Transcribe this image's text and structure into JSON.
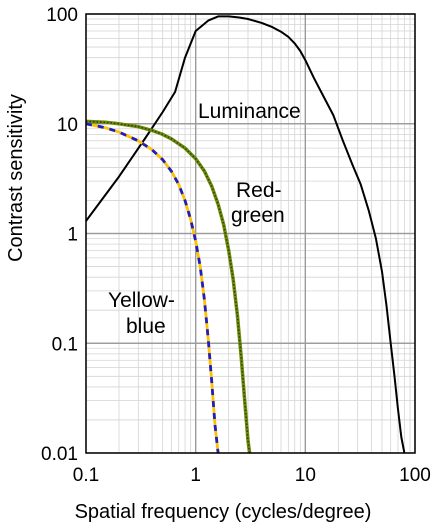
{
  "chart_data": {
    "type": "line",
    "title": "",
    "xlabel": "Spatial frequency (cycles/degree)",
    "ylabel": "Contrast sensitivity",
    "xscale": "log",
    "yscale": "log",
    "xlim": [
      0.1,
      100
    ],
    "ylim": [
      0.01,
      100
    ],
    "grid": true,
    "x_ticks": [
      "0.1",
      "1",
      "10",
      "100"
    ],
    "y_ticks": [
      "100",
      "10",
      "1",
      "0.1",
      "0.01"
    ],
    "annotations": [
      {
        "text": "Luminance",
        "series": "luminance"
      },
      {
        "text": "Red-",
        "series": "red-green"
      },
      {
        "text": "green",
        "series": "red-green"
      },
      {
        "text": "Yellow-",
        "series": "yellow-blue"
      },
      {
        "text": "blue",
        "series": "yellow-blue"
      }
    ],
    "series": [
      {
        "id": "luminance",
        "style": "solid",
        "colors": [
          "#000000"
        ],
        "x": [
          0.1,
          0.2,
          0.35,
          0.5,
          0.65,
          0.8,
          1.0,
          1.3,
          1.6,
          2.0,
          2.5,
          3.0,
          4.0,
          5.0,
          6.0,
          7.0,
          8.0,
          9.0,
          10.0,
          12.0,
          15.0,
          18.0,
          22.0,
          27.0,
          32.0,
          38.0,
          44.0,
          50.0,
          55.0,
          60.0,
          65.0,
          70.0,
          75.0,
          80.0
        ],
        "y": [
          1.3,
          3.3,
          7.5,
          12.8,
          19.5,
          40.0,
          70.0,
          87.0,
          95.0,
          95.0,
          93.0,
          90.0,
          83.0,
          76.0,
          69.0,
          62.0,
          54.0,
          46.0,
          38.0,
          26.0,
          17.0,
          12.0,
          7.0,
          4.2,
          2.8,
          1.6,
          0.9,
          0.45,
          0.22,
          0.1,
          0.05,
          0.025,
          0.014,
          0.01
        ]
      },
      {
        "id": "red-green",
        "style": "dotted-double",
        "colors": [
          "#6b8e00",
          "#333333"
        ],
        "x": [
          0.1,
          0.15,
          0.2,
          0.3,
          0.4,
          0.5,
          0.6,
          0.8,
          1.0,
          1.2,
          1.4,
          1.6,
          1.8,
          2.0,
          2.2,
          2.4,
          2.6,
          2.8,
          3.0,
          3.1
        ],
        "y": [
          10.5,
          10.3,
          10.0,
          9.4,
          8.7,
          8.0,
          7.3,
          6.0,
          4.8,
          3.7,
          2.7,
          1.85,
          1.2,
          0.7,
          0.38,
          0.18,
          0.075,
          0.03,
          0.013,
          0.01
        ]
      },
      {
        "id": "yellow-blue",
        "style": "dashed-double",
        "colors": [
          "#ffc000",
          "#1f1fc0"
        ],
        "x": [
          0.1,
          0.15,
          0.2,
          0.3,
          0.4,
          0.5,
          0.6,
          0.7,
          0.8,
          0.9,
          1.0,
          1.1,
          1.2,
          1.3,
          1.4,
          1.5,
          1.6
        ],
        "y": [
          10.0,
          9.2,
          8.4,
          7.0,
          5.8,
          4.7,
          3.7,
          2.8,
          2.0,
          1.35,
          0.85,
          0.5,
          0.25,
          0.11,
          0.045,
          0.018,
          0.01
        ]
      }
    ]
  }
}
